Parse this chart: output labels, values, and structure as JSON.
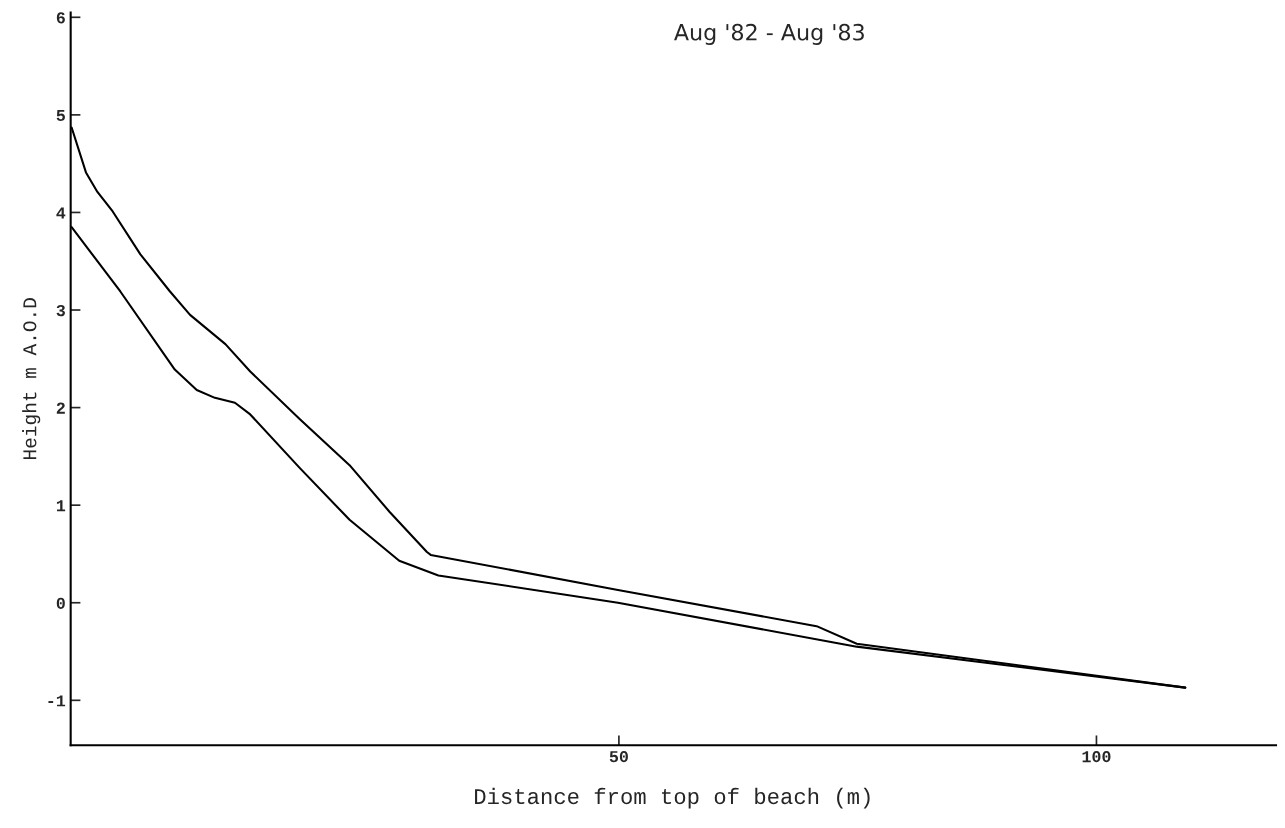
{
  "chart_data": {
    "type": "line",
    "title": "Aug '82 - Aug '83",
    "xlabel": "Distance from top of beach (m)",
    "ylabel": "Height m A.O.D",
    "xlim": [
      -7.4,
      118.8
    ],
    "ylim": [
      -1.46,
      6.05
    ],
    "xticks": [
      50,
      100
    ],
    "yticks": [
      -1,
      0,
      1,
      2,
      3,
      4,
      5,
      6
    ],
    "grid": false,
    "legend": false,
    "marker": "none",
    "line_style": "solid",
    "series": [
      {
        "color": "#000000",
        "x": [
          -7.3,
          -5.8,
          -4.6,
          -3.0,
          -0.1,
          3.0,
          5.1,
          8.8,
          11.4,
          16.6,
          21.8,
          26.0,
          29.9,
          30.3,
          49.9,
          70.7,
          74.9,
          109.3
        ],
        "values": [
          4.87,
          4.41,
          4.21,
          4.01,
          3.57,
          3.19,
          2.95,
          2.65,
          2.37,
          1.88,
          1.41,
          0.93,
          0.52,
          0.49,
          0.13,
          -0.24,
          -0.42,
          -0.87
        ]
      },
      {
        "color": "#000000",
        "x": [
          -7.3,
          -2.2,
          3.5,
          5.8,
          7.7,
          9.8,
          11.4,
          16.6,
          21.8,
          27.0,
          31.1,
          49.9,
          74.9,
          109.3
        ],
        "values": [
          3.85,
          3.19,
          2.39,
          2.18,
          2.1,
          2.05,
          1.93,
          1.38,
          0.85,
          0.43,
          0.28,
          0.0,
          -0.45,
          -0.87
        ]
      }
    ]
  }
}
